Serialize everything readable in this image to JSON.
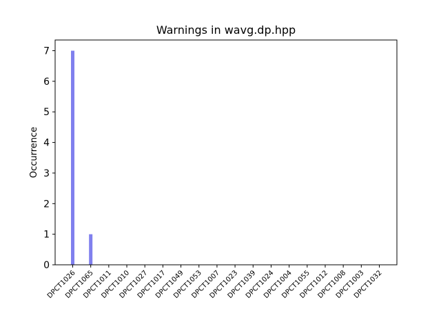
{
  "chart_data": {
    "type": "bar",
    "title": "Warnings in wavg.dp.hpp",
    "xlabel": "",
    "ylabel": "Occurrence",
    "categories": [
      "DPCT1026",
      "DPCT1065",
      "DPCT1011",
      "DPCT1010",
      "DPCT1027",
      "DPCT1017",
      "DPCT1049",
      "DPCT1053",
      "DPCT1007",
      "DPCT1023",
      "DPCT1039",
      "DPCT1024",
      "DPCT1004",
      "DPCT1055",
      "DPCT1012",
      "DPCT1008",
      "DPCT1003",
      "DPCT1032"
    ],
    "values": [
      7,
      1,
      0,
      0,
      0,
      0,
      0,
      0,
      0,
      0,
      0,
      0,
      0,
      0,
      0,
      0,
      0,
      0
    ],
    "ylim": [
      0,
      7.35
    ],
    "yticks": [
      0,
      1,
      2,
      3,
      4,
      5,
      6,
      7
    ],
    "bar_color": "#8080ee",
    "grid": false,
    "legend": "none"
  }
}
